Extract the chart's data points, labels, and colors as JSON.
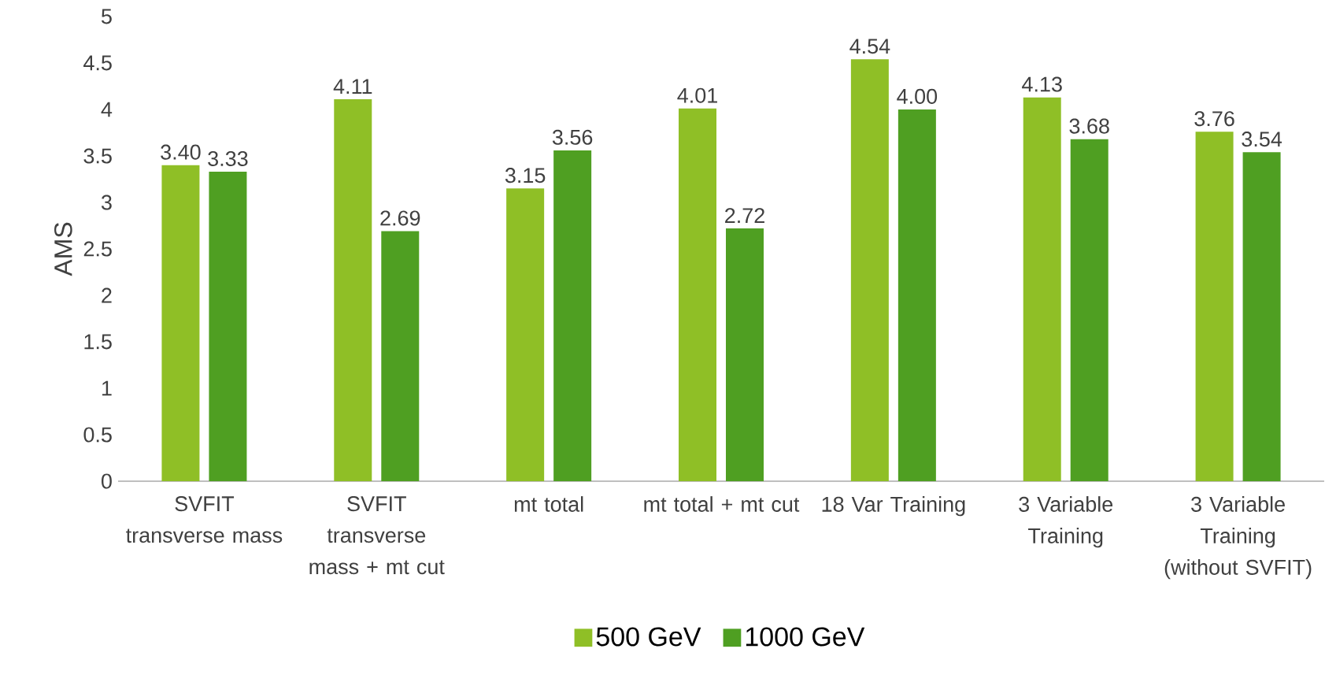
{
  "chart_data": {
    "type": "bar",
    "ylabel": "AMS",
    "categories": [
      "SVFIT transverse mass",
      "SVFIT transverse mass + mt cut",
      "mt total",
      "mt total + mt cut",
      "18 Var Training",
      "3 Variable Training",
      "3 Variable Training (without SVFIT)"
    ],
    "series": [
      {
        "name": "500 GeV",
        "color": "#8fbf26",
        "values": [
          3.4,
          4.11,
          3.15,
          4.01,
          4.54,
          4.13,
          3.76
        ],
        "value_labels": [
          "3.40",
          "4.11",
          "3.15",
          "4.01",
          "4.54",
          "4.13",
          "3.76"
        ]
      },
      {
        "name": "1000 GeV",
        "color": "#4f9f22",
        "values": [
          3.33,
          2.69,
          3.56,
          2.72,
          4.0,
          3.68,
          3.54
        ],
        "value_labels": [
          "3.33",
          "2.69",
          "3.56",
          "2.72",
          "4.00",
          "3.68",
          "3.54"
        ]
      }
    ],
    "ylim": [
      0,
      5
    ],
    "yticks": [
      0,
      0.5,
      1,
      1.5,
      2,
      2.5,
      3,
      3.5,
      4,
      4.5,
      5
    ],
    "grid": false,
    "legend": "bottom"
  }
}
